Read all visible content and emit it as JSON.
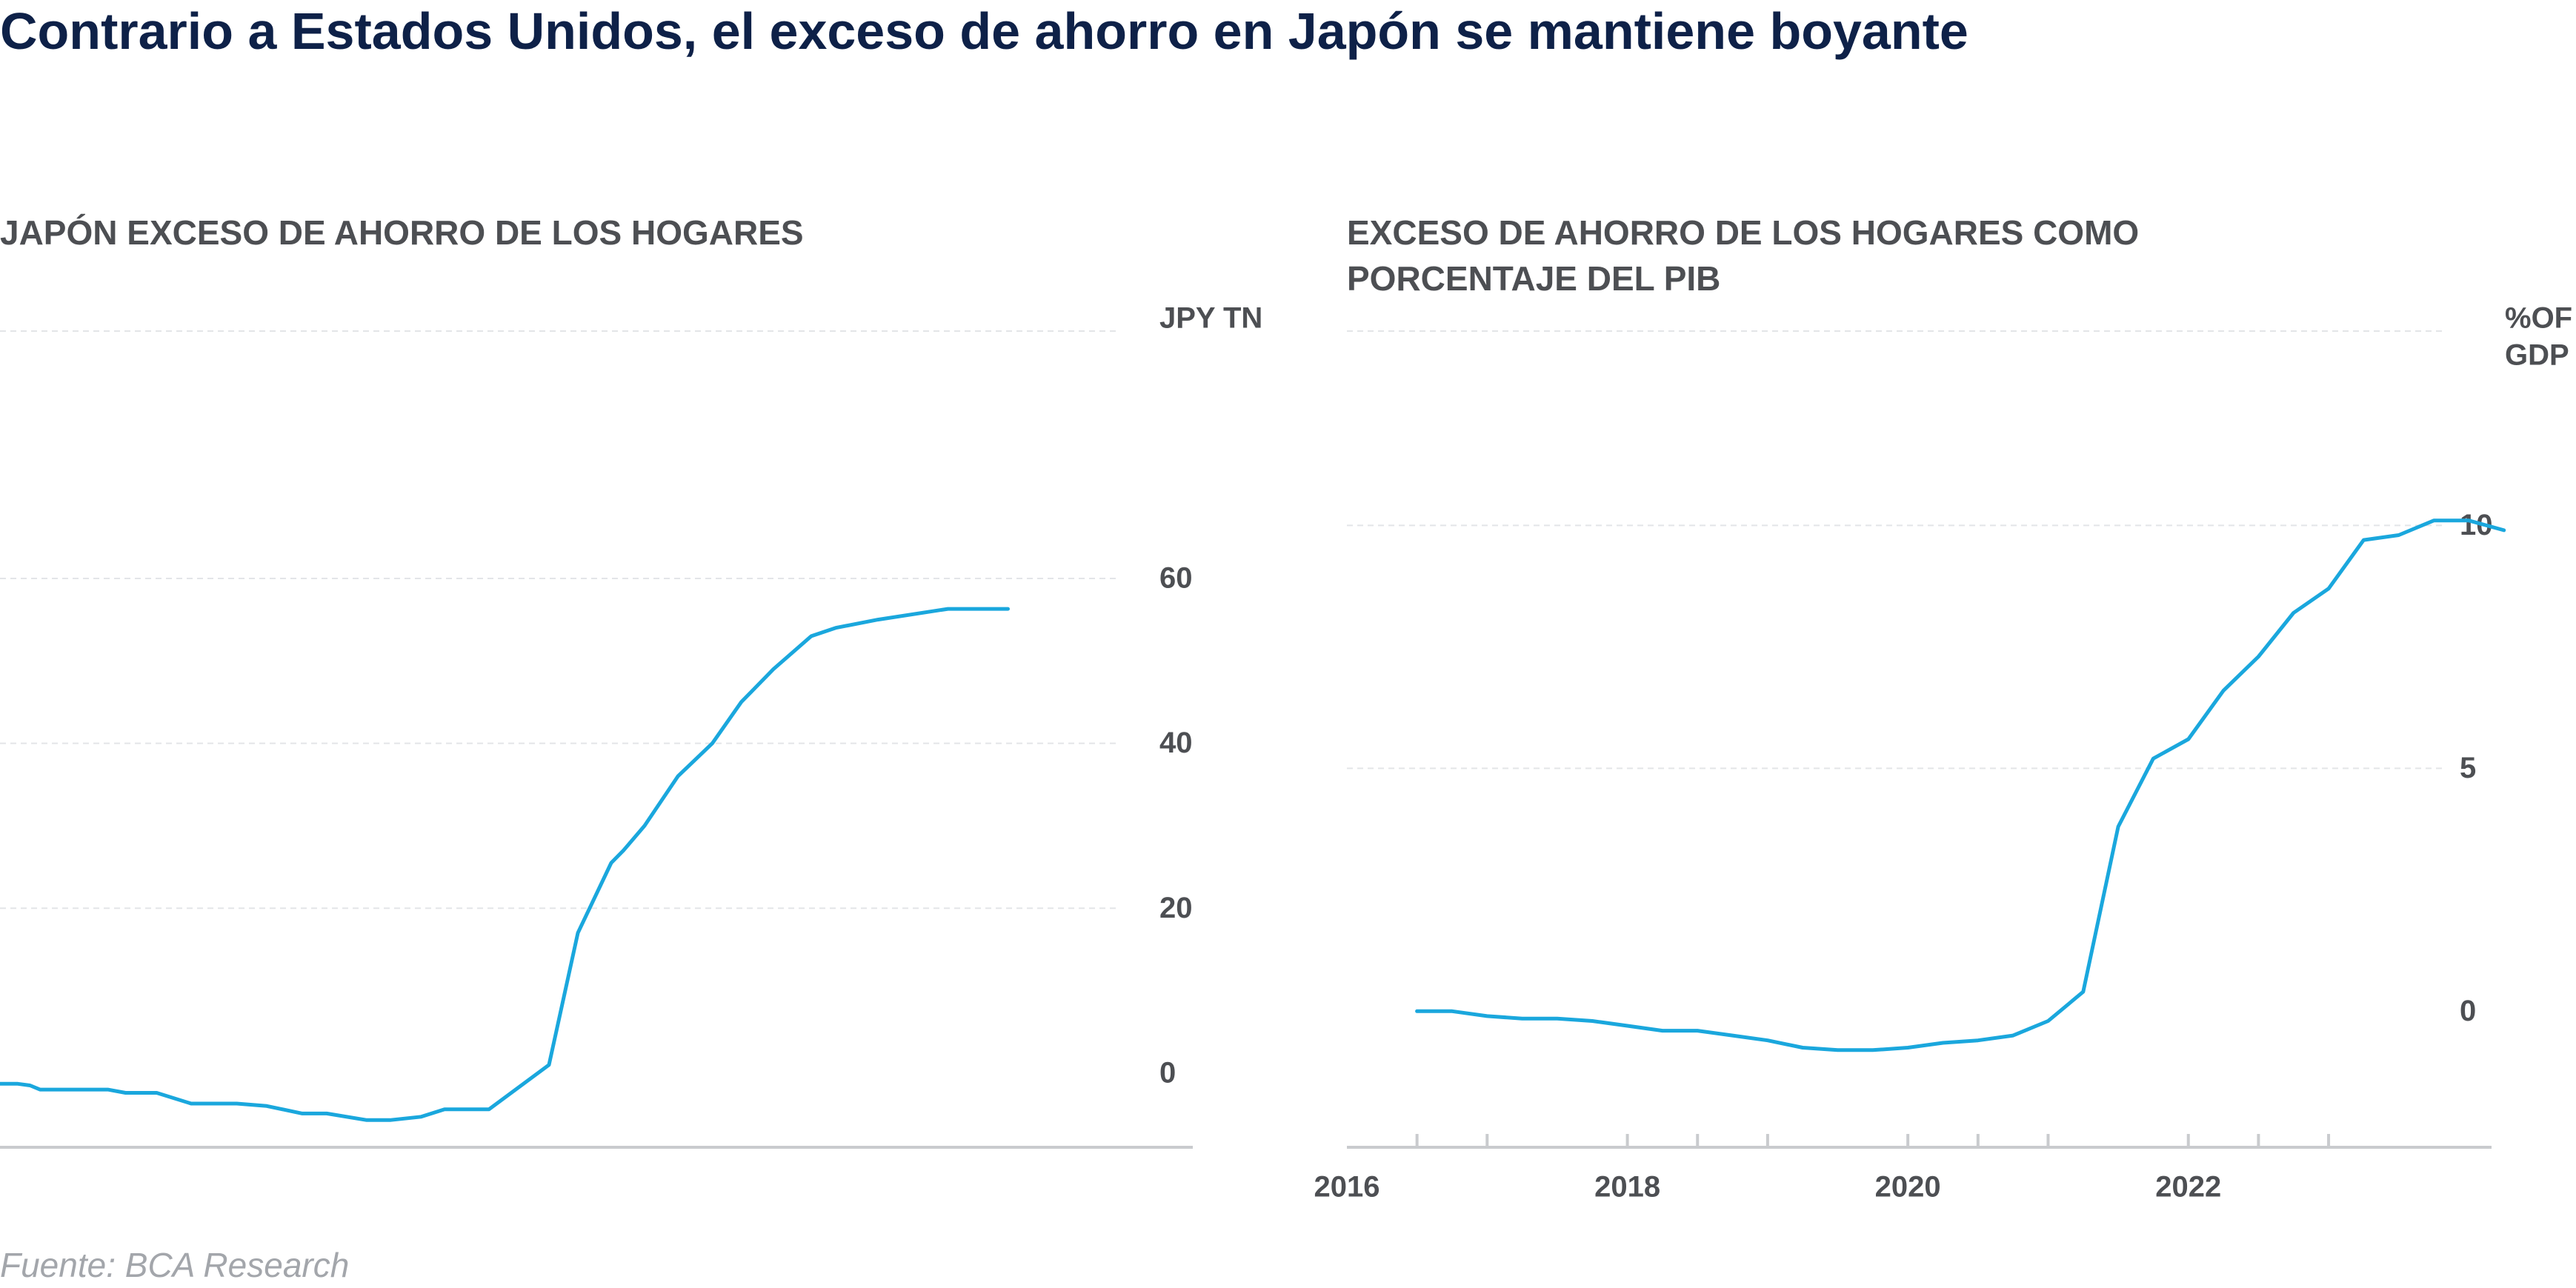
{
  "title": "Contrario a Estados Unidos, el exceso de ahorro en Japón se mantiene boyante",
  "source": "Fuente: BCA Research",
  "colors": {
    "line": "#1aa7dd",
    "title": "#0e2148",
    "text": "#4d4f53",
    "grid": "#e3e5e8",
    "axis": "#c9cbce"
  },
  "chart_data": [
    {
      "type": "line",
      "title": "JAPÓN EXCESO DE AHORRO DE LOS HOGARES",
      "unit_label": [
        "JPY TN"
      ],
      "y_ticks": [
        "0",
        "20",
        "40",
        "60"
      ],
      "ylim": [
        -9,
        90
      ],
      "xlim": [
        0,
        1
      ],
      "x_ticks": [],
      "grid": true,
      "series": [
        {
          "x": [
            0,
            0.016,
            0.027,
            0.036,
            0.066,
            0.097,
            0.113,
            0.141,
            0.172,
            0.213,
            0.24,
            0.272,
            0.294,
            0.33,
            0.351,
            0.379,
            0.4,
            0.44,
            0.494,
            0.52,
            0.55,
            0.561,
            0.58,
            0.61,
            0.641,
            0.667,
            0.696,
            0.73,
            0.752,
            0.79,
            0.853,
            0.867,
            0.907
          ],
          "y": [
            -1.3,
            -1.3,
            -1.5,
            -2,
            -2,
            -2,
            -2.4,
            -2.4,
            -3.7,
            -3.7,
            -4,
            -4.9,
            -4.9,
            -5.7,
            -5.7,
            -5.3,
            -4.4,
            -4.4,
            1,
            17,
            25.5,
            27,
            30,
            36,
            40,
            45,
            49,
            53,
            54,
            55,
            56.3,
            56.3,
            56.3
          ]
        }
      ]
    },
    {
      "type": "line",
      "title": "EXCESO DE AHORRO DE LOS HOGARES COMO PORCENTAJE DEL PIB",
      "unit_label": [
        "%OF",
        "GDP"
      ],
      "y_ticks": [
        "0",
        "5",
        "10"
      ],
      "ylim": [
        -2.8,
        14
      ],
      "xlim": [
        2016,
        2024.5
      ],
      "x_ticks": [
        "2016",
        "2018",
        "2020",
        "2022"
      ],
      "grid": true,
      "series": [
        {
          "x": [
            2016.5,
            2016.75,
            2017,
            2017.25,
            2017.5,
            2017.75,
            2018,
            2018.25,
            2018.5,
            2018.75,
            2019,
            2019.25,
            2019.5,
            2019.75,
            2020,
            2020.25,
            2020.5,
            2020.75,
            2021,
            2021.25,
            2021.5,
            2021.75,
            2022,
            2022.25,
            2022.5,
            2022.75,
            2023,
            2023.25,
            2023.5,
            2023.75,
            2024,
            2024.25
          ],
          "y": [
            0,
            0,
            -0.1,
            -0.15,
            -0.15,
            -0.2,
            -0.3,
            -0.4,
            -0.4,
            -0.5,
            -0.6,
            -0.75,
            -0.8,
            -0.8,
            -0.75,
            -0.65,
            -0.6,
            -0.5,
            -0.2,
            0.4,
            3.8,
            5.2,
            5.6,
            6.6,
            7.3,
            8.2,
            8.7,
            9.7,
            9.8,
            10.1,
            10.1,
            9.9
          ]
        }
      ]
    }
  ]
}
